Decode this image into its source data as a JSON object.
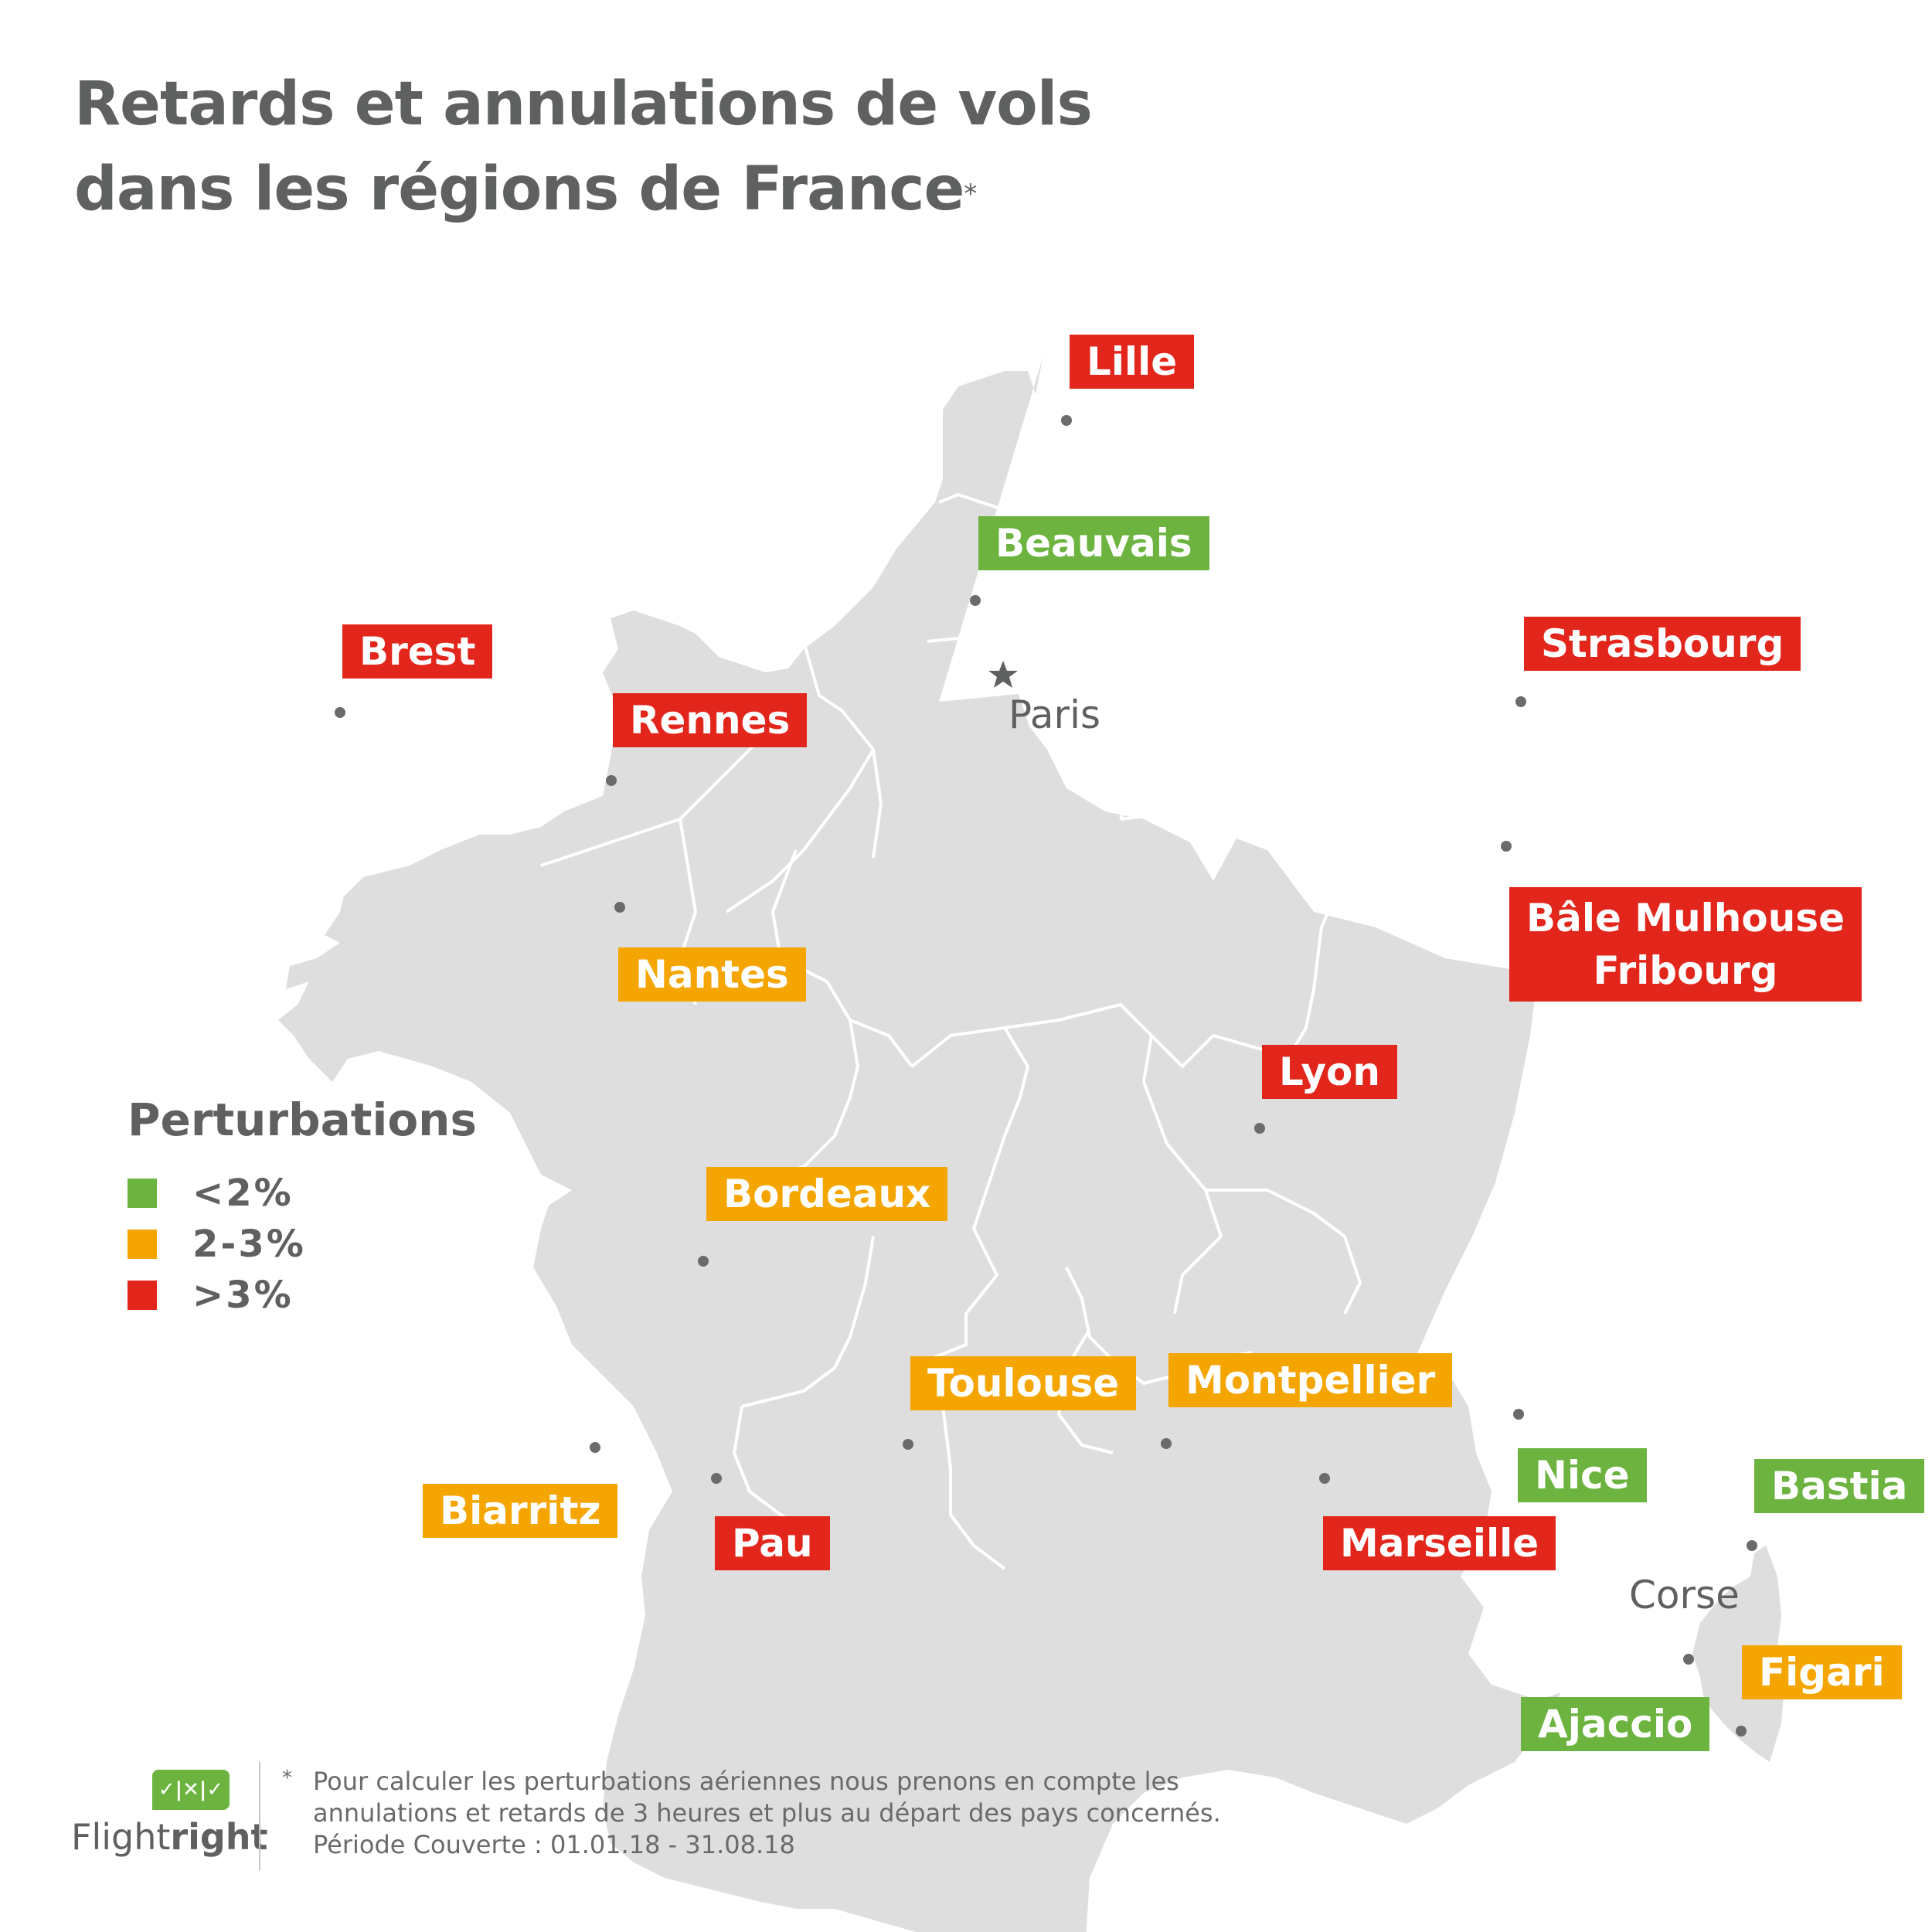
{
  "title": {
    "line1": "Retards et annulations de vols",
    "line2": "dans les régions de France",
    "marker": "*"
  },
  "colors": {
    "low": "#6cb33f",
    "medium": "#f5a500",
    "high": "#e2261c",
    "land": "#dedede",
    "border": "#ffffff",
    "text": "#5f6060"
  },
  "map": {
    "paris_label": "Paris",
    "corse_label": "Corse",
    "airports": [
      {
        "id": "lille",
        "lines": [
          "Lille"
        ],
        "level": "high"
      },
      {
        "id": "beauvais",
        "lines": [
          "Beauvais"
        ],
        "level": "low"
      },
      {
        "id": "brest",
        "lines": [
          "Brest"
        ],
        "level": "high"
      },
      {
        "id": "rennes",
        "lines": [
          "Rennes"
        ],
        "level": "high"
      },
      {
        "id": "strasbourg",
        "lines": [
          "Strasbourg"
        ],
        "level": "high"
      },
      {
        "id": "bale-mulhouse",
        "lines": [
          "Bâle Mulhouse",
          "Fribourg"
        ],
        "level": "high"
      },
      {
        "id": "nantes",
        "lines": [
          "Nantes"
        ],
        "level": "medium"
      },
      {
        "id": "lyon",
        "lines": [
          "Lyon"
        ],
        "level": "high"
      },
      {
        "id": "bordeaux",
        "lines": [
          "Bordeaux"
        ],
        "level": "medium"
      },
      {
        "id": "toulouse",
        "lines": [
          "Toulouse"
        ],
        "level": "medium"
      },
      {
        "id": "montpellier",
        "lines": [
          "Montpellier"
        ],
        "level": "medium"
      },
      {
        "id": "nice",
        "lines": [
          "Nice"
        ],
        "level": "low"
      },
      {
        "id": "bastia",
        "lines": [
          "Bastia"
        ],
        "level": "low"
      },
      {
        "id": "biarritz",
        "lines": [
          "Biarritz"
        ],
        "level": "medium"
      },
      {
        "id": "pau",
        "lines": [
          "Pau"
        ],
        "level": "high"
      },
      {
        "id": "marseille",
        "lines": [
          "Marseille"
        ],
        "level": "high"
      },
      {
        "id": "figari",
        "lines": [
          "Figari"
        ],
        "level": "medium"
      },
      {
        "id": "ajaccio",
        "lines": [
          "Ajaccio"
        ],
        "level": "low"
      }
    ]
  },
  "legend": {
    "title": "Perturbations",
    "items": [
      {
        "label": "<2%",
        "level": "low"
      },
      {
        "label": "2-3%",
        "level": "medium"
      },
      {
        "label": ">3%",
        "level": "high"
      }
    ]
  },
  "logo": {
    "badge": "✓|✕|✓",
    "name_regular": "Flight",
    "name_bold": "right"
  },
  "footnote": {
    "marker": "*",
    "line1": "Pour calculer les perturbations aériennes nous prenons en compte les",
    "line2": "annulations et retards de 3 heures et plus au départ des pays concernés.",
    "line3": "Période Couverte : 01.01.18 - 31.08.18"
  }
}
